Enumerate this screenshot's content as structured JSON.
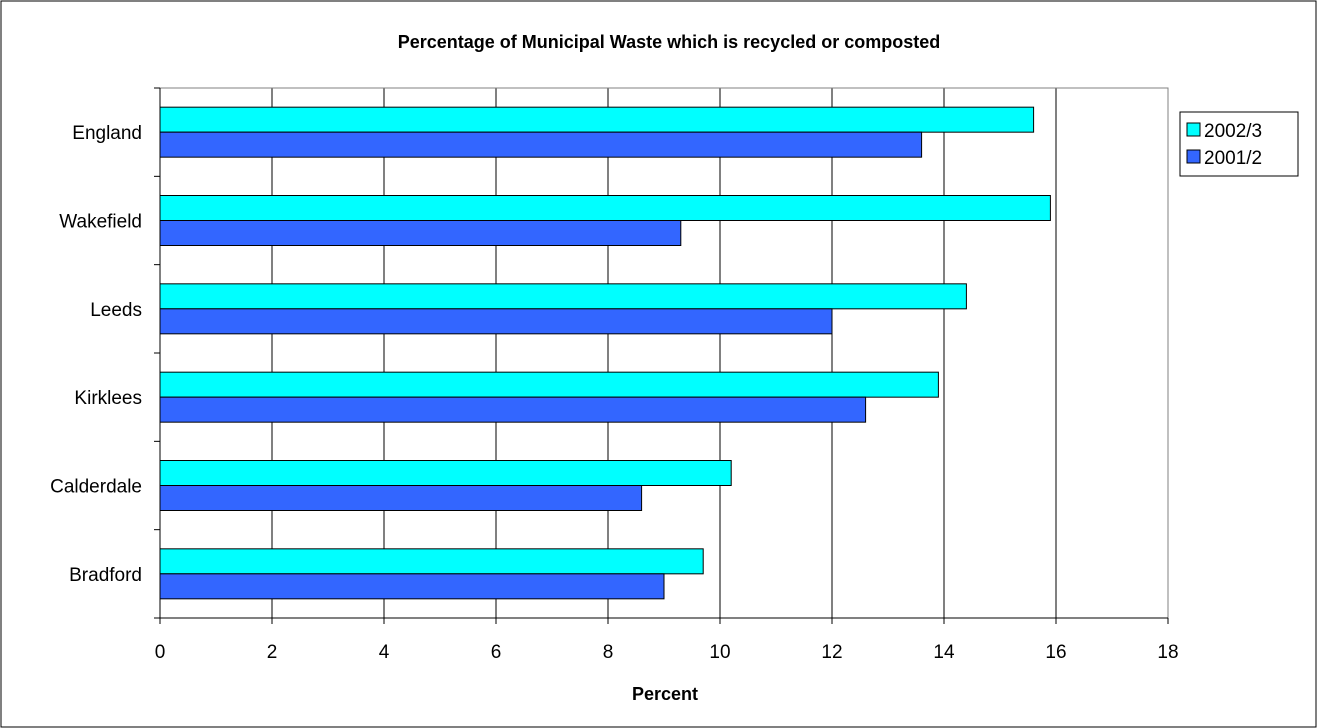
{
  "chart_data": {
    "type": "bar",
    "orientation": "horizontal",
    "title": "Percentage of Municipal Waste which is recycled or composted",
    "xlabel": "Percent",
    "ylabel": "",
    "categories": [
      "England",
      "Wakefield",
      "Leeds",
      "Kirklees",
      "Calderdale",
      "Bradford"
    ],
    "series": [
      {
        "name": "2002/3",
        "color": "#00ffff",
        "values": [
          15.6,
          15.9,
          14.4,
          13.9,
          10.2,
          9.7
        ]
      },
      {
        "name": "2001/2",
        "color": "#3366ff",
        "values": [
          13.6,
          9.3,
          12.0,
          12.6,
          8.6,
          9.0
        ]
      }
    ],
    "xlim": [
      0,
      18
    ],
    "xticks": [
      "0",
      "2",
      "4",
      "6",
      "8",
      "10",
      "12",
      "14",
      "16",
      "18"
    ],
    "grid": "vertical",
    "legend": "top-right"
  }
}
